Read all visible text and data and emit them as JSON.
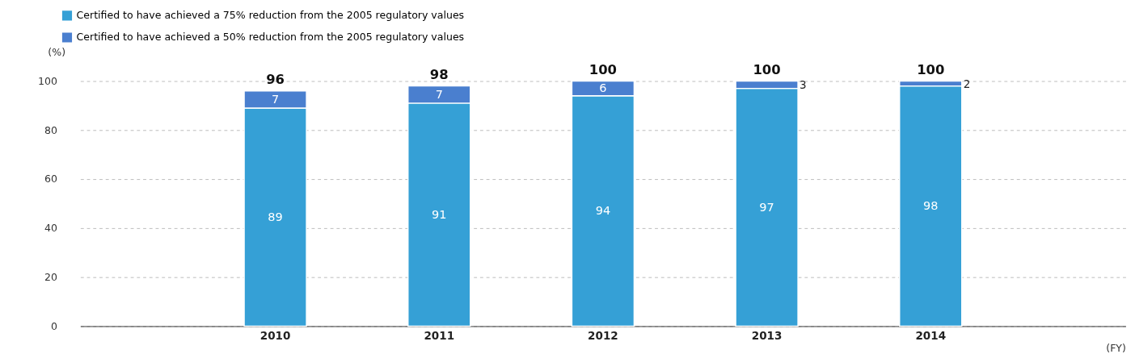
{
  "chart_data": {
    "type": "bar",
    "stacked": true,
    "categories": [
      "2010",
      "2011",
      "2012",
      "2013",
      "2014"
    ],
    "series": [
      {
        "name": "Certified to have achieved a 75% reduction from the 2005 regulatory values",
        "color": "#35a0d6",
        "values": [
          89,
          91,
          94,
          97,
          98
        ]
      },
      {
        "name": "Certified to have achieved a 50% reduction from the 2005 regulatory values",
        "color": "#4a7fcf",
        "values": [
          7,
          7,
          6,
          3,
          2
        ]
      }
    ],
    "totals": [
      "96",
      "98",
      "100",
      "100",
      "100"
    ],
    "data_labels": true,
    "ylabel": "(%)",
    "xlabel": "(FY)",
    "ylim": [
      0,
      100
    ],
    "yticks": [
      0,
      20,
      40,
      60,
      80,
      100
    ],
    "grid": "y",
    "legend": "top left"
  }
}
